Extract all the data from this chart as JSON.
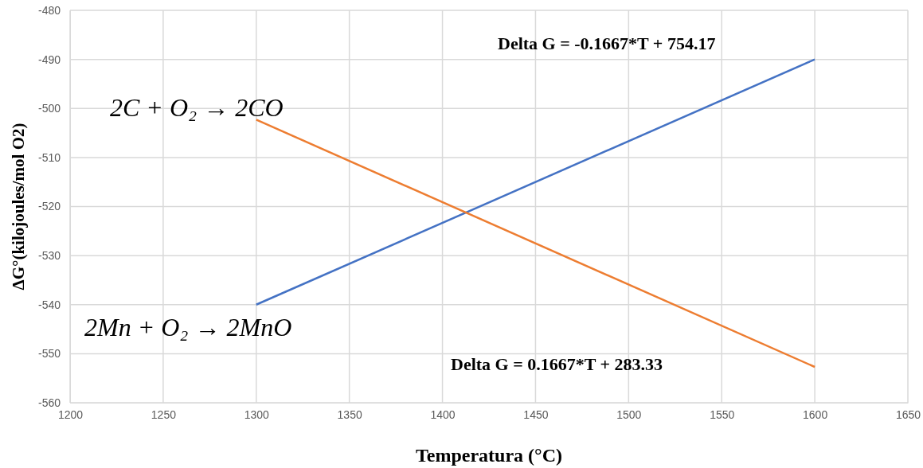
{
  "chart_data": {
    "type": "line",
    "xlabel": "Temperatura   (°C)",
    "ylabel": "ΔG°(kilojoules/mol  O2)",
    "xlim": [
      1200,
      1650
    ],
    "xticks": [
      1200,
      1250,
      1300,
      1350,
      1400,
      1450,
      1500,
      1550,
      1600,
      1650
    ],
    "ylim": [
      -560,
      -480
    ],
    "yticks": [
      -560,
      -550,
      -540,
      -530,
      -520,
      -510,
      -500,
      -490,
      -480
    ],
    "x": [
      1300,
      1600
    ],
    "grid": true,
    "marker": "none",
    "line_style": "solid",
    "series": [
      {
        "color": "#4472c4",
        "values": [
          -540,
          -490
        ]
      },
      {
        "color": "#ed7d31",
        "values": [
          -502.3,
          -552.7
        ]
      }
    ],
    "annotations": [
      "Delta G = -0.1667*T + 754.17",
      "2C + O₂  → 2CO",
      "2Mn + O₂  → 2MnO",
      "Delta G = 0.1667*T + 283.33"
    ]
  }
}
